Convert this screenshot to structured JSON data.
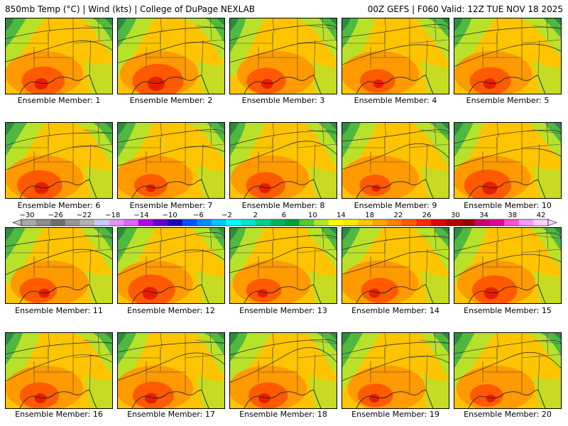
{
  "header": {
    "left": "850mb Temp (°C) | Wind (kts) | College of DuPage NEXLAB",
    "right": "00Z GEFS | F060 Valid: 12Z TUE NOV 18 2025"
  },
  "member_label_prefix": "Ensemble Member: ",
  "members": [
    {
      "id": 1,
      "label": "Ensemble Member: 1",
      "hot": 0.8
    },
    {
      "id": 2,
      "label": "Ensemble Member: 2",
      "hot": 1.0
    },
    {
      "id": 3,
      "label": "Ensemble Member: 3",
      "hot": 0.7
    },
    {
      "id": 4,
      "label": "Ensemble Member: 4",
      "hot": 0.6
    },
    {
      "id": 5,
      "label": "Ensemble Member: 5",
      "hot": 0.75
    },
    {
      "id": 6,
      "label": "Ensemble Member: 6",
      "hot": 0.85
    },
    {
      "id": 7,
      "label": "Ensemble Member: 7",
      "hot": 0.55
    },
    {
      "id": 8,
      "label": "Ensemble Member: 8",
      "hot": 0.7
    },
    {
      "id": 9,
      "label": "Ensemble Member: 9",
      "hot": 0.5
    },
    {
      "id": 10,
      "label": "Ensemble Member: 10",
      "hot": 0.9
    },
    {
      "id": 11,
      "label": "Ensemble Member: 11",
      "hot": 0.65
    },
    {
      "id": 12,
      "label": "Ensemble Member: 12",
      "hot": 0.9
    },
    {
      "id": 13,
      "label": "Ensemble Member: 13",
      "hot": 0.6
    },
    {
      "id": 14,
      "label": "Ensemble Member: 14",
      "hot": 0.65
    },
    {
      "id": 15,
      "label": "Ensemble Member: 15",
      "hot": 0.85
    },
    {
      "id": 16,
      "label": "Ensemble Member: 16",
      "hot": 0.7
    },
    {
      "id": 17,
      "label": "Ensemble Member: 17",
      "hot": 0.75
    },
    {
      "id": 18,
      "label": "Ensemble Member: 18",
      "hot": 0.7
    },
    {
      "id": 19,
      "label": "Ensemble Member: 19",
      "hot": 0.6
    },
    {
      "id": 20,
      "label": "Ensemble Member: 20",
      "hot": 0.55
    }
  ],
  "colorbar": {
    "labels": [
      "−30",
      "−26",
      "−22",
      "−18",
      "−14",
      "−10",
      "−6",
      "−2",
      "2",
      "6",
      "10",
      "14",
      "18",
      "22",
      "26",
      "30",
      "34",
      "38",
      "42"
    ],
    "colors": [
      "#a9a9a9",
      "#8c8c8c",
      "#6e6e6e",
      "#969696",
      "#b4b4b4",
      "#c8c8ff",
      "#e296ff",
      "#dc64ff",
      "#b400e6",
      "#6400c8",
      "#1e00b4",
      "#0050ff",
      "#008cff",
      "#00c8ff",
      "#00ffff",
      "#00e6c8",
      "#00d28c",
      "#00b464",
      "#00a03c",
      "#5ac832",
      "#b4e628",
      "#ffff00",
      "#ffeb00",
      "#ffc800",
      "#ffa500",
      "#ff8200",
      "#ff5a00",
      "#ff2800",
      "#e60000",
      "#b40000",
      "#960000",
      "#c8006e",
      "#e6009b",
      "#ff50d2",
      "#ff96ff",
      "#ffd2ff"
    ]
  },
  "palette": {
    "deep_green": "#2e8b3e",
    "green": "#4fb840",
    "lime": "#b8e12a",
    "yellow": "#ffeb00",
    "gold": "#ffc400",
    "orange": "#ff9a00",
    "red_orange": "#ff5a00",
    "red": "#e61e00"
  }
}
